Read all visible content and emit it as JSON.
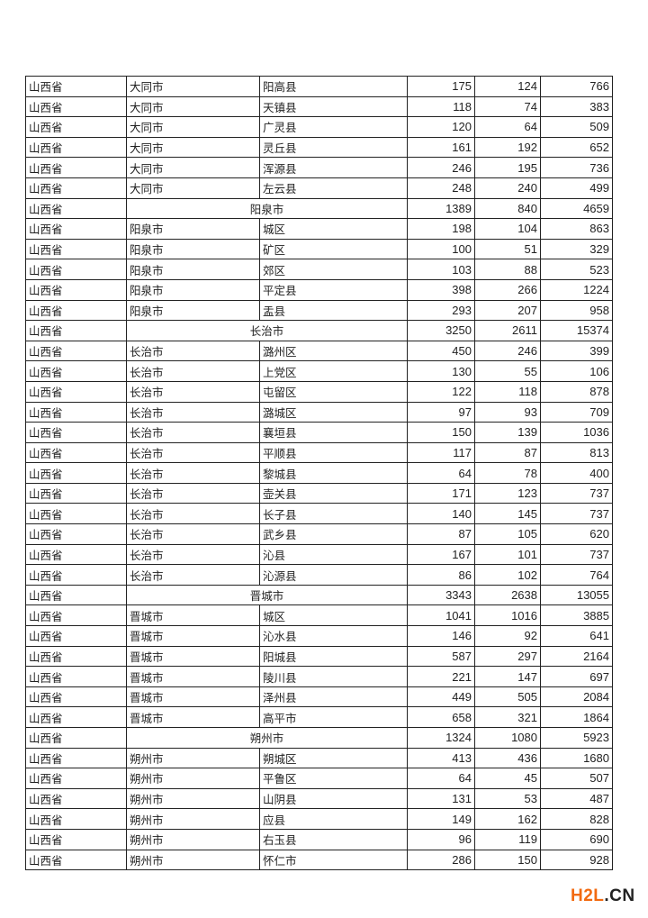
{
  "table": {
    "rows": [
      [
        "山西省",
        "大同市",
        "阳高县",
        "175",
        "124",
        "766"
      ],
      [
        "山西省",
        "大同市",
        "天镇县",
        "118",
        "74",
        "383"
      ],
      [
        "山西省",
        "大同市",
        "广灵县",
        "120",
        "64",
        "509"
      ],
      [
        "山西省",
        "大同市",
        "灵丘县",
        "161",
        "192",
        "652"
      ],
      [
        "山西省",
        "大同市",
        "浑源县",
        "246",
        "195",
        "736"
      ],
      [
        "山西省",
        "大同市",
        "左云县",
        "248",
        "240",
        "499"
      ],
      [
        "山西省",
        "阳泉市",
        null,
        "1389",
        "840",
        "4659"
      ],
      [
        "山西省",
        "阳泉市",
        "城区",
        "198",
        "104",
        "863"
      ],
      [
        "山西省",
        "阳泉市",
        "矿区",
        "100",
        "51",
        "329"
      ],
      [
        "山西省",
        "阳泉市",
        "郊区",
        "103",
        "88",
        "523"
      ],
      [
        "山西省",
        "阳泉市",
        "平定县",
        "398",
        "266",
        "1224"
      ],
      [
        "山西省",
        "阳泉市",
        "盂县",
        "293",
        "207",
        "958"
      ],
      [
        "山西省",
        "长治市",
        null,
        "3250",
        "2611",
        "15374"
      ],
      [
        "山西省",
        "长治市",
        "潞州区",
        "450",
        "246",
        "399"
      ],
      [
        "山西省",
        "长治市",
        "上党区",
        "130",
        "55",
        "106"
      ],
      [
        "山西省",
        "长治市",
        "屯留区",
        "122",
        "118",
        "878"
      ],
      [
        "山西省",
        "长治市",
        "潞城区",
        "97",
        "93",
        "709"
      ],
      [
        "山西省",
        "长治市",
        "襄垣县",
        "150",
        "139",
        "1036"
      ],
      [
        "山西省",
        "长治市",
        "平顺县",
        "117",
        "87",
        "813"
      ],
      [
        "山西省",
        "长治市",
        "黎城县",
        "64",
        "78",
        "400"
      ],
      [
        "山西省",
        "长治市",
        "壶关县",
        "171",
        "123",
        "737"
      ],
      [
        "山西省",
        "长治市",
        "长子县",
        "140",
        "145",
        "737"
      ],
      [
        "山西省",
        "长治市",
        "武乡县",
        "87",
        "105",
        "620"
      ],
      [
        "山西省",
        "长治市",
        "沁县",
        "167",
        "101",
        "737"
      ],
      [
        "山西省",
        "长治市",
        "沁源县",
        "86",
        "102",
        "764"
      ],
      [
        "山西省",
        "晋城市",
        null,
        "3343",
        "2638",
        "13055"
      ],
      [
        "山西省",
        "晋城市",
        "城区",
        "1041",
        "1016",
        "3885"
      ],
      [
        "山西省",
        "晋城市",
        "沁水县",
        "146",
        "92",
        "641"
      ],
      [
        "山西省",
        "晋城市",
        "阳城县",
        "587",
        "297",
        "2164"
      ],
      [
        "山西省",
        "晋城市",
        "陵川县",
        "221",
        "147",
        "697"
      ],
      [
        "山西省",
        "晋城市",
        "泽州县",
        "449",
        "505",
        "2084"
      ],
      [
        "山西省",
        "晋城市",
        "高平市",
        "658",
        "321",
        "1864"
      ],
      [
        "山西省",
        "朔州市",
        null,
        "1324",
        "1080",
        "5923"
      ],
      [
        "山西省",
        "朔州市",
        "朔城区",
        "413",
        "436",
        "1680"
      ],
      [
        "山西省",
        "朔州市",
        "平鲁区",
        "64",
        "45",
        "507"
      ],
      [
        "山西省",
        "朔州市",
        "山阴县",
        "131",
        "53",
        "487"
      ],
      [
        "山西省",
        "朔州市",
        "应县",
        "149",
        "162",
        "828"
      ],
      [
        "山西省",
        "朔州市",
        "右玉县",
        "96",
        "119",
        "690"
      ],
      [
        "山西省",
        "朔州市",
        "怀仁市",
        "286",
        "150",
        "928"
      ]
    ]
  },
  "watermark": {
    "part1": "H2L",
    "part2": ".CN",
    "accent_color": "#f26a10"
  }
}
